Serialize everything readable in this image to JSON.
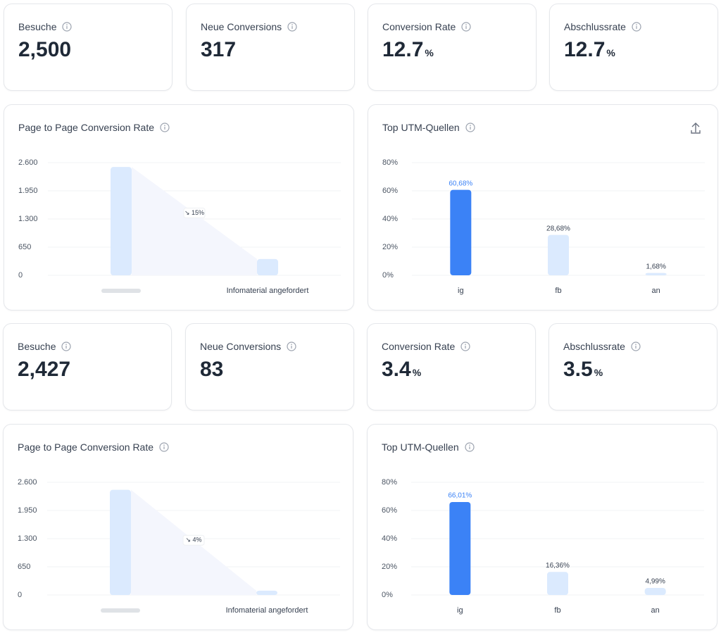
{
  "kpi_rows": [
    [
      {
        "label": "Besuche",
        "value": "2,500"
      },
      {
        "label": "Neue Conversions",
        "value": "317"
      },
      {
        "label": "Conversion Rate",
        "value": "12.7",
        "unit": "%"
      },
      {
        "label": "Abschlussrate",
        "value": "12.7",
        "unit": "%"
      }
    ],
    [
      {
        "label": "Besuche",
        "value": "2,427"
      },
      {
        "label": "Neue Conversions",
        "value": "83"
      },
      {
        "label": "Conversion Rate",
        "value": "3.4",
        "unit": "%"
      },
      {
        "label": "Abschlussrate",
        "value": "3.5",
        "unit": "%"
      }
    ]
  ],
  "chart_data": [
    {
      "type": "funnel",
      "title": "Page to Page Conversion Rate",
      "categories": [
        null,
        "Infomaterial angefordert"
      ],
      "values": [
        2500,
        375
      ],
      "annotation": "↘ 15%",
      "color": "#dbeafe",
      "ylim": [
        0,
        2600
      ],
      "yticks": [
        0,
        650,
        {
          "value": 1300,
          "label": "1.300"
        },
        {
          "value": 1950,
          "label": "1.950"
        },
        {
          "value": 2600,
          "label": "2.600"
        }
      ],
      "grid": true
    },
    {
      "type": "bar",
      "title": "Top UTM-Quellen",
      "categories": [
        "ig",
        "fb",
        "an"
      ],
      "values": [
        60.68,
        28.68,
        1.68
      ],
      "value_labels": [
        "60,68%",
        "28,68%",
        "1,68%"
      ],
      "colors": [
        "#3b82f6",
        "#dbeafe",
        "#dbeafe"
      ],
      "ylim": [
        0,
        80
      ],
      "yticks": [
        {
          "value": 0,
          "label": "0%"
        },
        {
          "value": 20,
          "label": "20%"
        },
        {
          "value": 40,
          "label": "40%"
        },
        {
          "value": 60,
          "label": "60%"
        },
        {
          "value": 80,
          "label": "80%"
        }
      ],
      "grid": true
    },
    {
      "type": "funnel",
      "title": "Page to Page Conversion Rate",
      "categories": [
        null,
        "Infomaterial angefordert"
      ],
      "values": [
        2427,
        100
      ],
      "annotation": "↘ 4%",
      "color": "#dbeafe",
      "ylim": [
        0,
        2600
      ],
      "yticks": [
        0,
        650,
        {
          "value": 1300,
          "label": "1.300"
        },
        {
          "value": 1950,
          "label": "1.950"
        },
        {
          "value": 2600,
          "label": "2.600"
        }
      ],
      "grid": true
    },
    {
      "type": "bar",
      "title": "Top UTM-Quellen",
      "categories": [
        "ig",
        "fb",
        "an"
      ],
      "values": [
        66.01,
        16.36,
        4.99
      ],
      "value_labels": [
        "66,01%",
        "16,36%",
        "4,99%"
      ],
      "colors": [
        "#3b82f6",
        "#dbeafe",
        "#dbeafe"
      ],
      "ylim": [
        0,
        80
      ],
      "yticks": [
        {
          "value": 0,
          "label": "0%"
        },
        {
          "value": 20,
          "label": "20%"
        },
        {
          "value": 40,
          "label": "40%"
        },
        {
          "value": 60,
          "label": "60%"
        },
        {
          "value": 80,
          "label": "80%"
        }
      ],
      "grid": true
    }
  ]
}
